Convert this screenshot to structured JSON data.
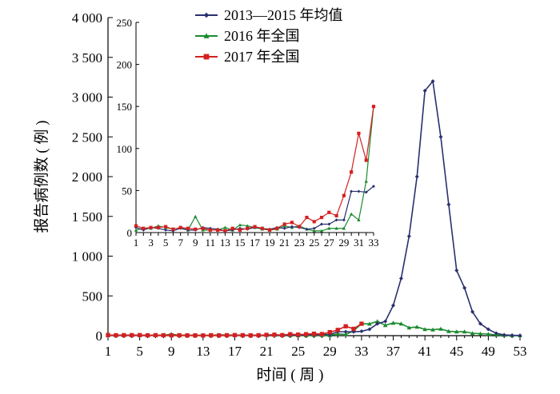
{
  "chart_data": {
    "type": "line",
    "xlabel": "时间 ( 周 )",
    "ylabel": "报告病例数 ( 例 )",
    "legend_position": "top-center",
    "main": {
      "xlim": [
        1,
        53
      ],
      "ylim": [
        0,
        4000
      ],
      "x_ticks": [
        1,
        5,
        9,
        13,
        17,
        21,
        25,
        29,
        33,
        37,
        41,
        45,
        49,
        53
      ],
      "y_ticks": [
        0,
        500,
        1000,
        1500,
        2000,
        2500,
        3000,
        3500,
        4000
      ],
      "y_tick_labels": [
        "0",
        "500",
        "1 000",
        "1 500",
        "2 000",
        "2 500",
        "3 000",
        "3 500",
        "4 000"
      ]
    },
    "inset": {
      "xlim": [
        1,
        33
      ],
      "ylim": [
        0,
        250
      ],
      "x_ticks": [
        1,
        3,
        5,
        7,
        9,
        11,
        13,
        15,
        17,
        19,
        21,
        23,
        25,
        27,
        29,
        31,
        33
      ],
      "x_tick_labels": [
        "1",
        "3",
        "5",
        "7",
        "9",
        "11",
        "13",
        "15",
        "17",
        "19",
        "21",
        "23",
        "25",
        "27",
        "29",
        "31",
        "33"
      ],
      "y_ticks": [
        0,
        50,
        100,
        150,
        200,
        250
      ],
      "y_tick_labels": [
        "0",
        "50",
        "100",
        "150",
        "200",
        "250"
      ]
    },
    "series": [
      {
        "name": "2013—2015 年均值",
        "color": "#2a2f6e",
        "marker": "diamond",
        "x": [
          1,
          2,
          3,
          4,
          5,
          6,
          7,
          8,
          9,
          10,
          11,
          12,
          13,
          14,
          15,
          16,
          17,
          18,
          19,
          20,
          21,
          22,
          23,
          24,
          25,
          26,
          27,
          28,
          29,
          30,
          31,
          32,
          33,
          34,
          35,
          36,
          37,
          38,
          39,
          40,
          41,
          42,
          43,
          44,
          45,
          46,
          47,
          48,
          49,
          50,
          51,
          52,
          53
        ],
        "y": [
          6,
          3,
          6,
          5,
          3,
          2,
          5,
          3,
          3,
          6,
          5,
          4,
          2,
          3,
          5,
          4,
          6,
          5,
          4,
          6,
          5,
          7,
          6,
          4,
          5,
          10,
          10,
          15,
          15,
          49,
          49,
          48,
          55,
          80,
          150,
          180,
          380,
          720,
          1250,
          2000,
          3080,
          3200,
          2500,
          1650,
          820,
          600,
          300,
          150,
          80,
          30,
          10,
          5,
          2
        ]
      },
      {
        "name": "2016 年全国",
        "color": "#1b8a2f",
        "marker": "triangle",
        "x": [
          1,
          2,
          3,
          4,
          5,
          6,
          7,
          8,
          9,
          10,
          11,
          12,
          13,
          14,
          15,
          16,
          17,
          18,
          19,
          20,
          21,
          22,
          23,
          24,
          25,
          26,
          27,
          28,
          29,
          30,
          31,
          32,
          33,
          34,
          35,
          36,
          37,
          38,
          39,
          40,
          41,
          42,
          43,
          44,
          45,
          46,
          47,
          48,
          49,
          50,
          51,
          52,
          53
        ],
        "y": [
          3,
          5,
          5,
          8,
          6,
          4,
          6,
          3,
          19,
          3,
          3,
          3,
          6,
          3,
          9,
          8,
          6,
          4,
          3,
          4,
          8,
          6,
          8,
          4,
          2,
          2,
          5,
          5,
          5,
          22,
          15,
          61,
          150,
          148,
          180,
          130,
          160,
          150,
          100,
          110,
          80,
          75,
          85,
          55,
          50,
          50,
          30,
          25,
          20,
          10,
          8,
          3,
          2
        ]
      },
      {
        "name": "2017 年全国",
        "color": "#d42020",
        "marker": "square",
        "x": [
          1,
          2,
          3,
          4,
          5,
          6,
          7,
          8,
          9,
          10,
          11,
          12,
          13,
          14,
          15,
          16,
          17,
          18,
          19,
          20,
          21,
          22,
          23,
          24,
          25,
          26,
          27,
          28,
          29,
          30,
          31,
          32,
          33
        ],
        "y": [
          8,
          5,
          6,
          6,
          7,
          4,
          6,
          5,
          4,
          5,
          3,
          3,
          2,
          5,
          3,
          5,
          7,
          5,
          3,
          5,
          10,
          12,
          7,
          18,
          13,
          18,
          24,
          20,
          44,
          72,
          118,
          86,
          150
        ]
      }
    ]
  }
}
